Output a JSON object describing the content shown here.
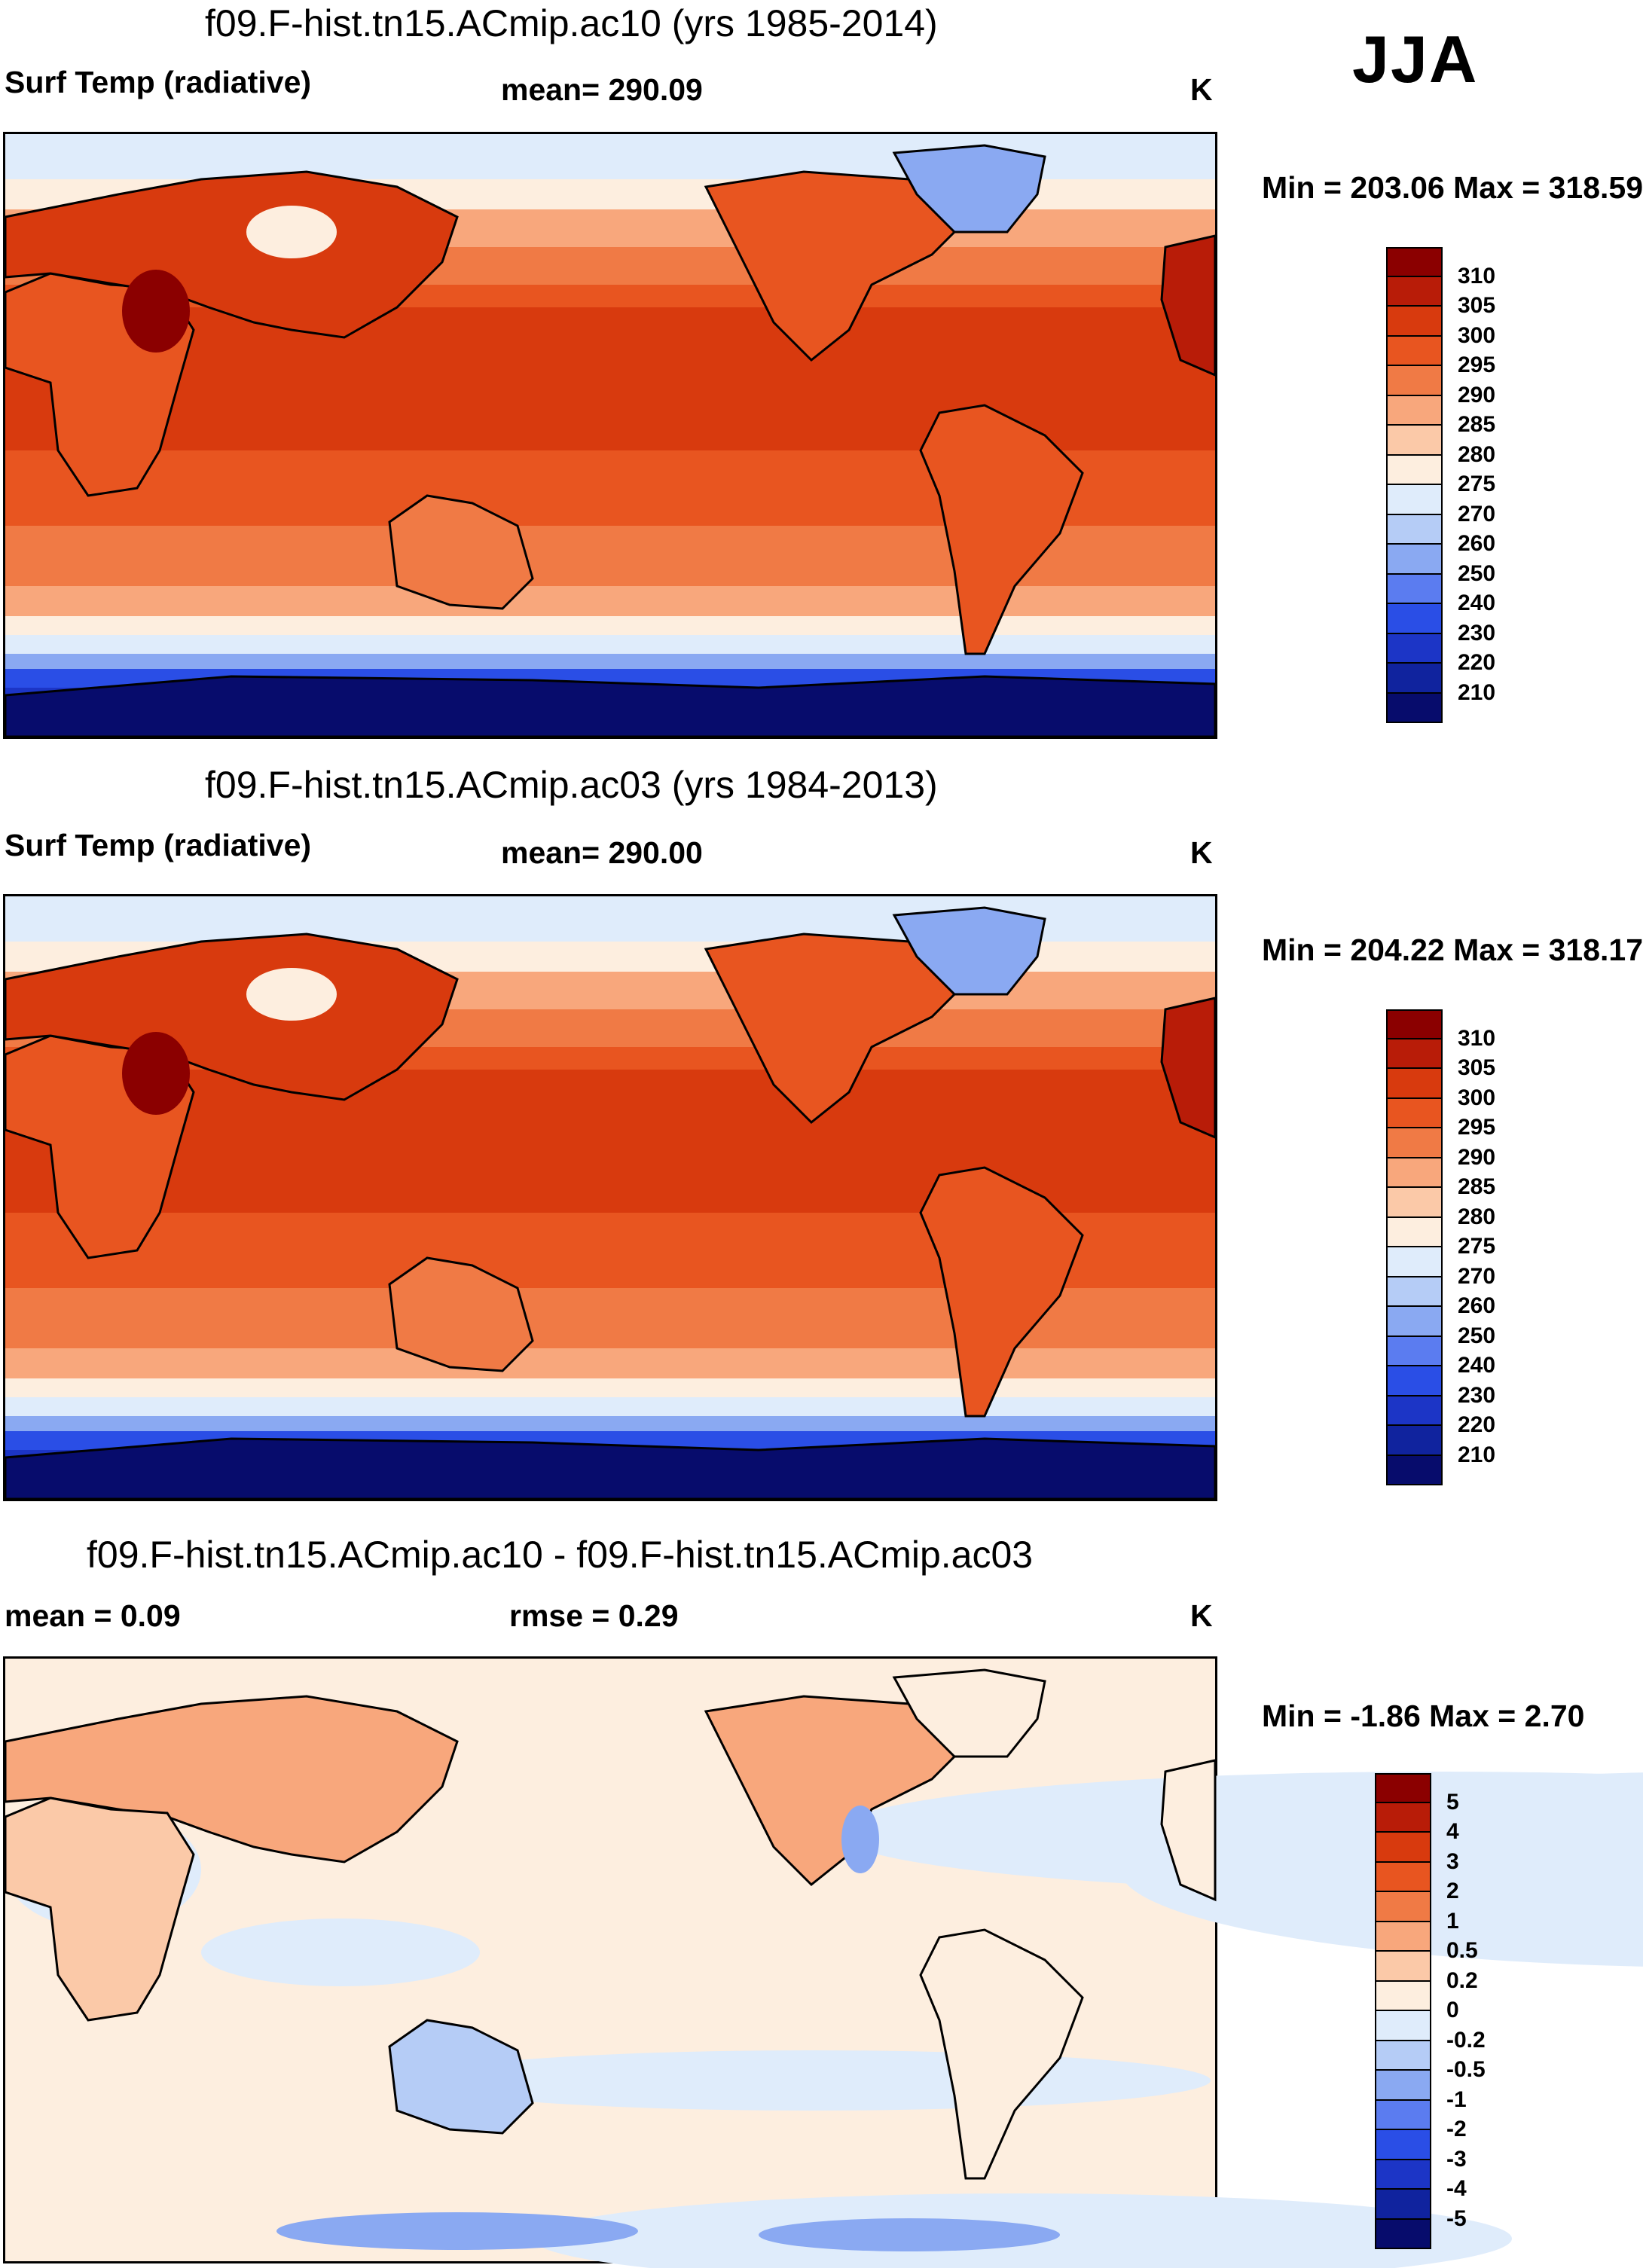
{
  "season": "JJA",
  "units": "K",
  "panels": [
    {
      "title": "f09.F-hist.tn15.ACmip.ac10 (yrs 1985-2014)",
      "left_label": "Surf Temp (radiative)",
      "center_label": "mean= 290.09",
      "right_label": "K",
      "minmax": "Min = 203.06 Max = 318.59"
    },
    {
      "title": "f09.F-hist.tn15.ACmip.ac03 (yrs 1984-2013)",
      "left_label": "Surf Temp (radiative)",
      "center_label": "mean= 290.00",
      "right_label": "K",
      "minmax": "Min = 204.22 Max = 318.17"
    },
    {
      "title": "f09.F-hist.tn15.ACmip.ac10 - f09.F-hist.tn15.ACmip.ac03",
      "left_label": "mean =   0.09",
      "center_label": "rmse =   0.29",
      "right_label": "K",
      "minmax": "Min =  -1.86 Max =   2.70"
    }
  ],
  "chart_data": [
    {
      "type": "heatmap",
      "title": "f09.F-hist.tn15.ACmip.ac10 (yrs 1985-2014)",
      "variable": "Surf Temp (radiative)",
      "units": "K",
      "mean": 290.09,
      "min": 203.06,
      "max": 318.59,
      "colorbar_levels": [
        310,
        305,
        300,
        295,
        290,
        285,
        280,
        275,
        270,
        260,
        250,
        240,
        230,
        220,
        210
      ],
      "colorbar_colors": [
        "#8b0000",
        "#b81c08",
        "#d83a0e",
        "#e85520",
        "#f07a45",
        "#f8a77c",
        "#fbc9a8",
        "#fdeedf",
        "#dfecfb",
        "#b5ccf6",
        "#8aa9f2",
        "#5b7cf0",
        "#2a4ee6",
        "#1c35c6",
        "#10239e",
        "#070c6c"
      ]
    },
    {
      "type": "heatmap",
      "title": "f09.F-hist.tn15.ACmip.ac03 (yrs 1984-2013)",
      "variable": "Surf Temp (radiative)",
      "units": "K",
      "mean": 290.0,
      "min": 204.22,
      "max": 318.17,
      "colorbar_levels": [
        310,
        305,
        300,
        295,
        290,
        285,
        280,
        275,
        270,
        260,
        250,
        240,
        230,
        220,
        210
      ],
      "colorbar_colors": [
        "#8b0000",
        "#b81c08",
        "#d83a0e",
        "#e85520",
        "#f07a45",
        "#f8a77c",
        "#fbc9a8",
        "#fdeedf",
        "#dfecfb",
        "#b5ccf6",
        "#8aa9f2",
        "#5b7cf0",
        "#2a4ee6",
        "#1c35c6",
        "#10239e",
        "#070c6c"
      ]
    },
    {
      "type": "heatmap",
      "title": "f09.F-hist.tn15.ACmip.ac10 - f09.F-hist.tn15.ACmip.ac03",
      "units": "K",
      "mean": 0.09,
      "rmse": 0.29,
      "min": -1.86,
      "max": 2.7,
      "colorbar_levels": [
        "5",
        "4",
        "3",
        "2",
        "1",
        "0.5",
        "0.2",
        "0",
        "-0.2",
        "-0.5",
        "-1",
        "-2",
        "-3",
        "-4",
        "-5"
      ],
      "colorbar_colors": [
        "#8b0000",
        "#b81c08",
        "#d83a0e",
        "#e85520",
        "#f07a45",
        "#f8a77c",
        "#fbc9a8",
        "#fdeedf",
        "#dfecfb",
        "#b5ccf6",
        "#8aa9f2",
        "#5b7cf0",
        "#2a4ee6",
        "#1c35c6",
        "#10239e",
        "#070c6c"
      ]
    }
  ]
}
